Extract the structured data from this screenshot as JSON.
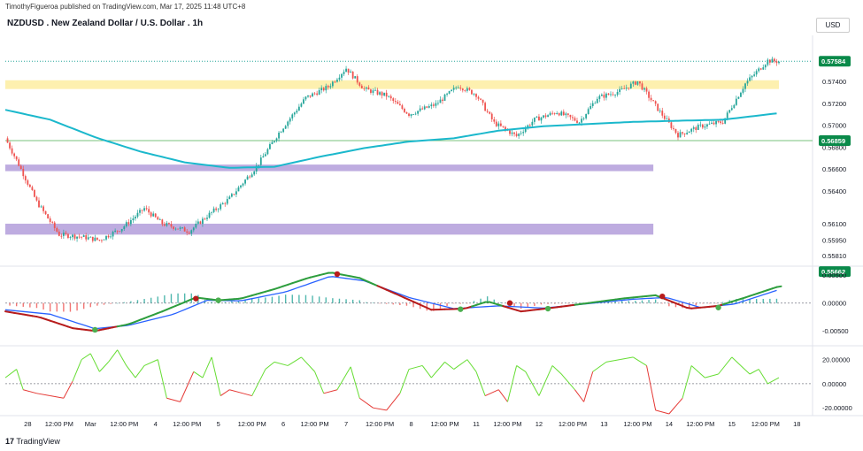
{
  "header": {
    "publisher_line": "TimothyFigueroa published on TradingView.com, Mar 17, 2025 11:48 UTC+8",
    "symbol_title": "NZDUSD . New Zealand Dollar / U.S. Dollar . 1h",
    "currency_button": "USD"
  },
  "footer": {
    "logo_glyph": "17",
    "brand": "TradingView"
  },
  "colors": {
    "bull_candle": "#26a69a",
    "bear_candle": "#ef5350",
    "ma_line": "#1bb8cc",
    "resistance_zone": "#fdeea6",
    "support_zone": "#b39ddb",
    "macd_fast": "#2e9e3e",
    "macd_red": "#b71c1c",
    "macd_signal": "#2962ff",
    "rsi_up": "#66dd33",
    "rsi_down": "#e53935",
    "price_badge": "#0a8a4a"
  },
  "chart_data": [
    {
      "type": "candlestick",
      "name": "price",
      "y_axis_ticks": [
        "0.57400",
        "0.57200",
        "0.57000",
        "0.56800",
        "0.56600",
        "0.56400",
        "0.56100",
        "0.55950",
        "0.55810"
      ],
      "y_range": [
        0.5572,
        0.5782
      ],
      "price_labels": [
        {
          "label": "0.57584",
          "value": 0.57584
        },
        {
          "label": "0.56859",
          "value": 0.56859
        },
        {
          "label": "0.55662",
          "value": 0.55662
        }
      ],
      "zones": [
        {
          "kind": "resistance",
          "low": 0.5733,
          "high": 0.5741
        },
        {
          "kind": "support",
          "low": 0.5658,
          "high": 0.5664
        },
        {
          "kind": "support",
          "low": 0.56,
          "high": 0.561
        }
      ],
      "key_points": [
        {
          "t": 0,
          "v": 0.5688
        },
        {
          "t": 6,
          "v": 0.5664
        },
        {
          "t": 14,
          "v": 0.563
        },
        {
          "t": 24,
          "v": 0.56
        },
        {
          "t": 34,
          "v": 0.5598
        },
        {
          "t": 42,
          "v": 0.5595
        },
        {
          "t": 52,
          "v": 0.5606
        },
        {
          "t": 62,
          "v": 0.5624
        },
        {
          "t": 70,
          "v": 0.561
        },
        {
          "t": 82,
          "v": 0.5603
        },
        {
          "t": 90,
          "v": 0.5617
        },
        {
          "t": 100,
          "v": 0.5633
        },
        {
          "t": 112,
          "v": 0.5662
        },
        {
          "t": 122,
          "v": 0.5693
        },
        {
          "t": 134,
          "v": 0.5725
        },
        {
          "t": 144,
          "v": 0.5735
        },
        {
          "t": 152,
          "v": 0.5752
        },
        {
          "t": 160,
          "v": 0.5733
        },
        {
          "t": 170,
          "v": 0.5727
        },
        {
          "t": 180,
          "v": 0.571
        },
        {
          "t": 192,
          "v": 0.5719
        },
        {
          "t": 202,
          "v": 0.5736
        },
        {
          "t": 210,
          "v": 0.5728
        },
        {
          "t": 218,
          "v": 0.5702
        },
        {
          "t": 228,
          "v": 0.569
        },
        {
          "t": 236,
          "v": 0.5705
        },
        {
          "t": 246,
          "v": 0.5712
        },
        {
          "t": 256,
          "v": 0.5703
        },
        {
          "t": 264,
          "v": 0.5725
        },
        {
          "t": 274,
          "v": 0.5731
        },
        {
          "t": 282,
          "v": 0.574
        },
        {
          "t": 292,
          "v": 0.5712
        },
        {
          "t": 300,
          "v": 0.5691
        },
        {
          "t": 310,
          "v": 0.5699
        },
        {
          "t": 320,
          "v": 0.5703
        },
        {
          "t": 330,
          "v": 0.5738
        },
        {
          "t": 340,
          "v": 0.5759
        },
        {
          "t": 345,
          "v": 0.5758
        }
      ],
      "moving_average": [
        {
          "t": 0,
          "v": 0.5714
        },
        {
          "t": 20,
          "v": 0.5705
        },
        {
          "t": 40,
          "v": 0.5689
        },
        {
          "t": 60,
          "v": 0.5676
        },
        {
          "t": 80,
          "v": 0.5666
        },
        {
          "t": 100,
          "v": 0.5661
        },
        {
          "t": 120,
          "v": 0.5662
        },
        {
          "t": 140,
          "v": 0.5671
        },
        {
          "t": 160,
          "v": 0.5679
        },
        {
          "t": 180,
          "v": 0.5685
        },
        {
          "t": 200,
          "v": 0.5688
        },
        {
          "t": 220,
          "v": 0.5695
        },
        {
          "t": 240,
          "v": 0.5699
        },
        {
          "t": 260,
          "v": 0.5701
        },
        {
          "t": 280,
          "v": 0.5703
        },
        {
          "t": 300,
          "v": 0.5704
        },
        {
          "t": 320,
          "v": 0.5705
        },
        {
          "t": 345,
          "v": 0.5711
        }
      ]
    },
    {
      "type": "line",
      "name": "macd",
      "y_axis_ticks": [
        "0.00500",
        "0.00000",
        "-0.00500"
      ],
      "y_range": [
        -0.0075,
        0.0063
      ],
      "fast": [
        {
          "t": 0,
          "v": -0.0015
        },
        {
          "t": 15,
          "v": -0.0025
        },
        {
          "t": 30,
          "v": -0.0045
        },
        {
          "t": 40,
          "v": -0.005
        },
        {
          "t": 55,
          "v": -0.0038
        },
        {
          "t": 70,
          "v": -0.0015
        },
        {
          "t": 85,
          "v": 0.001
        },
        {
          "t": 95,
          "v": 0.0005
        },
        {
          "t": 105,
          "v": 0.0008
        },
        {
          "t": 120,
          "v": 0.0025
        },
        {
          "t": 135,
          "v": 0.0045
        },
        {
          "t": 145,
          "v": 0.0055
        },
        {
          "t": 158,
          "v": 0.0045
        },
        {
          "t": 175,
          "v": 0.0015
        },
        {
          "t": 190,
          "v": -0.0012
        },
        {
          "t": 205,
          "v": -0.001
        },
        {
          "t": 215,
          "v": 0.0003
        },
        {
          "t": 230,
          "v": -0.0015
        },
        {
          "t": 245,
          "v": -0.0008
        },
        {
          "t": 260,
          "v": 0.0
        },
        {
          "t": 275,
          "v": 0.0008
        },
        {
          "t": 290,
          "v": 0.0014
        },
        {
          "t": 305,
          "v": -0.001
        },
        {
          "t": 318,
          "v": -0.0005
        },
        {
          "t": 330,
          "v": 0.001
        },
        {
          "t": 345,
          "v": 0.003
        }
      ],
      "signal": [
        {
          "t": 0,
          "v": -0.0012
        },
        {
          "t": 20,
          "v": -0.002
        },
        {
          "t": 40,
          "v": -0.0046
        },
        {
          "t": 55,
          "v": -0.004
        },
        {
          "t": 75,
          "v": -0.002
        },
        {
          "t": 90,
          "v": 0.0005
        },
        {
          "t": 105,
          "v": 0.0004
        },
        {
          "t": 125,
          "v": 0.002
        },
        {
          "t": 145,
          "v": 0.0048
        },
        {
          "t": 160,
          "v": 0.004
        },
        {
          "t": 180,
          "v": 0.001
        },
        {
          "t": 200,
          "v": -0.001
        },
        {
          "t": 220,
          "v": -0.0005
        },
        {
          "t": 240,
          "v": -0.0009
        },
        {
          "t": 260,
          "v": -0.0001
        },
        {
          "t": 280,
          "v": 0.0007
        },
        {
          "t": 295,
          "v": 0.001
        },
        {
          "t": 310,
          "v": -0.0008
        },
        {
          "t": 325,
          "v": -0.0002
        },
        {
          "t": 345,
          "v": 0.0024
        }
      ],
      "cross_points": [
        {
          "t": 40,
          "v": -0.0048,
          "dir": "bull"
        },
        {
          "t": 85,
          "v": 0.0008,
          "dir": "bear"
        },
        {
          "t": 95,
          "v": 0.0005,
          "dir": "bull"
        },
        {
          "t": 148,
          "v": 0.0052,
          "dir": "bear"
        },
        {
          "t": 203,
          "v": -0.0011,
          "dir": "bull"
        },
        {
          "t": 225,
          "v": 0.0,
          "dir": "bear"
        },
        {
          "t": 242,
          "v": -0.001,
          "dir": "bull"
        },
        {
          "t": 293,
          "v": 0.0012,
          "dir": "bear"
        },
        {
          "t": 318,
          "v": -0.0008,
          "dir": "bull"
        }
      ]
    },
    {
      "type": "line",
      "name": "rsi_oscillator",
      "y_axis_ticks": [
        "20.00000",
        "0.00000",
        "-20.00000"
      ],
      "y_range": [
        -25,
        30
      ],
      "values": [
        {
          "t": 0,
          "v": 5
        },
        {
          "t": 5,
          "v": 12
        },
        {
          "t": 8,
          "v": -5
        },
        {
          "t": 14,
          "v": -8
        },
        {
          "t": 20,
          "v": -10
        },
        {
          "t": 26,
          "v": -12
        },
        {
          "t": 30,
          "v": 2
        },
        {
          "t": 34,
          "v": 20
        },
        {
          "t": 38,
          "v": 25
        },
        {
          "t": 42,
          "v": 10
        },
        {
          "t": 46,
          "v": 18
        },
        {
          "t": 50,
          "v": 28
        },
        {
          "t": 54,
          "v": 15
        },
        {
          "t": 58,
          "v": 5
        },
        {
          "t": 62,
          "v": 15
        },
        {
          "t": 68,
          "v": 20
        },
        {
          "t": 72,
          "v": -12
        },
        {
          "t": 78,
          "v": -15
        },
        {
          "t": 84,
          "v": 10
        },
        {
          "t": 88,
          "v": 5
        },
        {
          "t": 92,
          "v": 22
        },
        {
          "t": 96,
          "v": -10
        },
        {
          "t": 100,
          "v": -5
        },
        {
          "t": 106,
          "v": -8
        },
        {
          "t": 110,
          "v": -10
        },
        {
          "t": 116,
          "v": 12
        },
        {
          "t": 120,
          "v": 18
        },
        {
          "t": 126,
          "v": 15
        },
        {
          "t": 132,
          "v": 22
        },
        {
          "t": 138,
          "v": 10
        },
        {
          "t": 142,
          "v": -8
        },
        {
          "t": 148,
          "v": -5
        },
        {
          "t": 154,
          "v": 14
        },
        {
          "t": 158,
          "v": -12
        },
        {
          "t": 164,
          "v": -20
        },
        {
          "t": 170,
          "v": -22
        },
        {
          "t": 176,
          "v": -8
        },
        {
          "t": 180,
          "v": 12
        },
        {
          "t": 186,
          "v": 15
        },
        {
          "t": 190,
          "v": 5
        },
        {
          "t": 196,
          "v": 18
        },
        {
          "t": 200,
          "v": 12
        },
        {
          "t": 206,
          "v": 20
        },
        {
          "t": 210,
          "v": 10
        },
        {
          "t": 214,
          "v": -10
        },
        {
          "t": 220,
          "v": -5
        },
        {
          "t": 224,
          "v": -15
        },
        {
          "t": 228,
          "v": 15
        },
        {
          "t": 232,
          "v": 10
        },
        {
          "t": 238,
          "v": -10
        },
        {
          "t": 244,
          "v": 15
        },
        {
          "t": 248,
          "v": 8
        },
        {
          "t": 254,
          "v": -5
        },
        {
          "t": 258,
          "v": -15
        },
        {
          "t": 262,
          "v": 10
        },
        {
          "t": 268,
          "v": 18
        },
        {
          "t": 274,
          "v": 20
        },
        {
          "t": 280,
          "v": 22
        },
        {
          "t": 286,
          "v": 15
        },
        {
          "t": 290,
          "v": -22
        },
        {
          "t": 296,
          "v": -25
        },
        {
          "t": 302,
          "v": -12
        },
        {
          "t": 306,
          "v": 15
        },
        {
          "t": 312,
          "v": 5
        },
        {
          "t": 318,
          "v": 8
        },
        {
          "t": 324,
          "v": 22
        },
        {
          "t": 328,
          "v": 15
        },
        {
          "t": 332,
          "v": 8
        },
        {
          "t": 336,
          "v": 12
        },
        {
          "t": 340,
          "v": 0
        },
        {
          "t": 345,
          "v": 5
        }
      ]
    }
  ],
  "x_axis_labels": [
    {
      "label": "28",
      "t": 10
    },
    {
      "label": "12:00 PM",
      "t": 24
    },
    {
      "label": "Mar",
      "t": 38
    },
    {
      "label": "12:00 PM",
      "t": 53
    },
    {
      "label": "4",
      "t": 67
    },
    {
      "label": "12:00 PM",
      "t": 81
    },
    {
      "label": "5",
      "t": 95
    },
    {
      "label": "12:00 PM",
      "t": 110
    },
    {
      "label": "6",
      "t": 124
    },
    {
      "label": "12:00 PM",
      "t": 138
    },
    {
      "label": "7",
      "t": 152
    },
    {
      "label": "12:00 PM",
      "t": 167
    },
    {
      "label": "8",
      "t": 181
    },
    {
      "label": "12:00 PM",
      "t": 196
    },
    {
      "label": "11",
      "t": 210
    },
    {
      "label": "12:00 PM",
      "t": 224
    },
    {
      "label": "12",
      "t": 238
    },
    {
      "label": "12:00 PM",
      "t": 253
    },
    {
      "label": "13",
      "t": 267
    },
    {
      "label": "12:00 PM",
      "t": 282
    },
    {
      "label": "14",
      "t": 296
    },
    {
      "label": "12:00 PM",
      "t": 310
    },
    {
      "label": "15",
      "t": 324
    },
    {
      "label": "12:00 PM",
      "t": 339
    },
    {
      "label": "18",
      "t": 353
    }
  ]
}
